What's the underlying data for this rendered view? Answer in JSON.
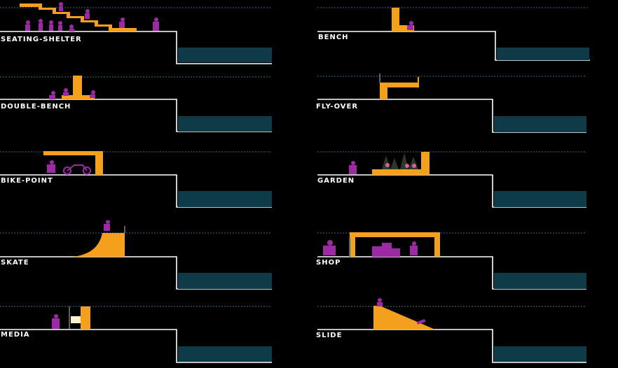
{
  "colors": {
    "background": "#000000",
    "structure": "#f5a01c",
    "figure": "#9c2aa4",
    "water": "#0f3a48",
    "line": "#ffffff",
    "dashed": "#2f6f8a"
  },
  "panels": [
    {
      "id": "seating-shelter",
      "label": "SEATING-SHELTER",
      "icon": "stepped-shelter"
    },
    {
      "id": "bench",
      "label": "BENCH",
      "icon": "bench"
    },
    {
      "id": "double-bench",
      "label": "DOUBLE-BENCH",
      "icon": "double-bench"
    },
    {
      "id": "fly-over",
      "label": "FLY-OVER",
      "icon": "fly-over"
    },
    {
      "id": "bike-point",
      "label": "BIKE-POINT",
      "icon": "bike-point"
    },
    {
      "id": "garden",
      "label": "GARDEN",
      "icon": "garden"
    },
    {
      "id": "skate",
      "label": "SKATE",
      "icon": "skate-ramp"
    },
    {
      "id": "shop",
      "label": "SHOP",
      "icon": "shop"
    },
    {
      "id": "media",
      "label": "MEDIA",
      "icon": "media-screen"
    },
    {
      "id": "slide",
      "label": "SLIDE",
      "icon": "slide"
    }
  ]
}
